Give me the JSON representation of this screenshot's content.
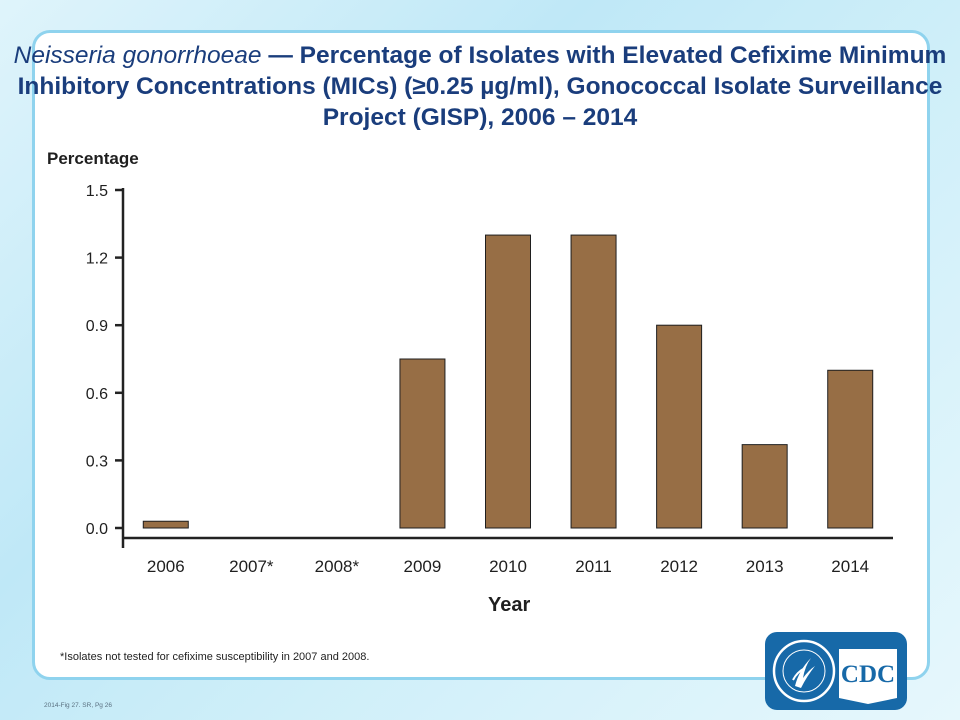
{
  "chart_data": {
    "type": "bar",
    "title_italic": "Neisseria gonorrhoeae",
    "title_rest": " — Percentage of  Isolates with Elevated Cefixime Minimum Inhibitory Concentrations (MICs) (≥0.25 µg/ml), Gonococcal Isolate Surveillance Project (GISP), 2006 – 2014",
    "ylabel": "Percentage",
    "xlabel": "Year",
    "categories": [
      "2006",
      "2007*",
      "2008*",
      "2009",
      "2010",
      "2011",
      "2012",
      "2013",
      "2014"
    ],
    "values": [
      0.03,
      null,
      null,
      0.75,
      1.3,
      1.3,
      0.9,
      0.37,
      0.7
    ],
    "ylim": [
      0,
      1.5
    ],
    "yticks": [
      "0.0",
      "0.3",
      "0.6",
      "0.9",
      "1.2",
      "1.5"
    ],
    "grid": false,
    "bar_color": "#976e45",
    "bar_border_color": "#1f1f1f"
  },
  "footnote": "*Isolates not tested for cefixime susceptibility  in 2007 and 2008.",
  "reference": "2014-Fig 27. SR, Pg 26",
  "logo": {
    "text": "CDC",
    "icon": "hhs-eagle-icon",
    "background_color": "#1769a8"
  }
}
